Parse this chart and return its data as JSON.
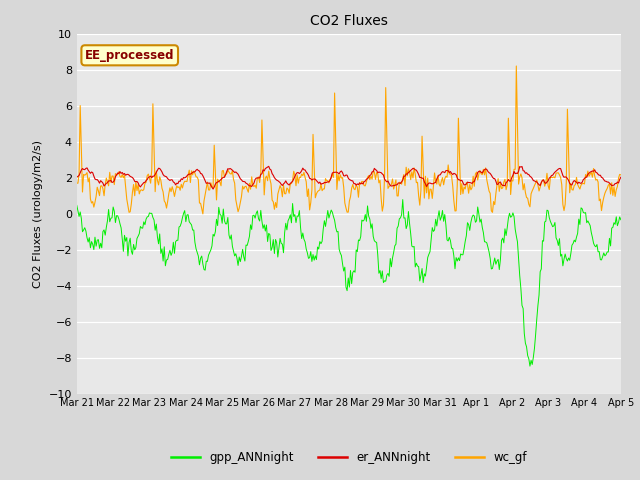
{
  "title": "CO2 Fluxes",
  "ylabel": "CO2 Fluxes (urology/m2/s)",
  "ylim": [
    -10,
    10
  ],
  "yticks": [
    -10,
    -8,
    -6,
    -4,
    -2,
    0,
    2,
    4,
    6,
    8,
    10
  ],
  "fig_bg_color": "#d8d8d8",
  "plot_bg_color": "#e8e8e8",
  "grid_color": "#ffffff",
  "annotation_text": "EE_processed",
  "annotation_bg": "#ffffcc",
  "annotation_border": "#cc8800",
  "annotation_text_color": "#880000",
  "line_colors": {
    "gpp": "#00ee00",
    "er": "#dd0000",
    "wc": "#ffa500"
  },
  "legend_labels": [
    "gpp_ANNnight",
    "er_ANNnight",
    "wc_gf"
  ],
  "x_tick_labels": [
    "Mar 21",
    "Mar 22",
    "Mar 23",
    "Mar 24",
    "Mar 25",
    "Mar 26",
    "Mar 27",
    "Mar 28",
    "Mar 29",
    "Mar 30",
    "Mar 31",
    "Apr 1",
    "Apr 2",
    "Apr 3",
    "Apr 4",
    "Apr 5"
  ],
  "num_points": 480,
  "num_days": 15
}
